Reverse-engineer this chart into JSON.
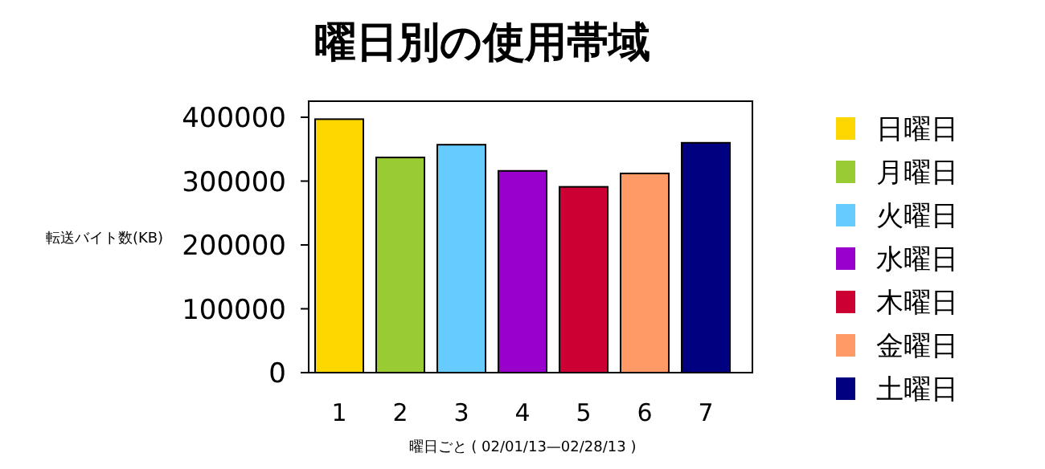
{
  "chart_data": {
    "type": "bar",
    "title": "曜日別の使用帯域",
    "xlabel": "曜日ごと ( 02/01/13—02/28/13 )",
    "ylabel": "転送バイト数(KB)",
    "categories": [
      "1",
      "2",
      "3",
      "4",
      "5",
      "6",
      "7"
    ],
    "series": [
      {
        "name": "日曜日",
        "color": "#ffd700",
        "values": [
          397000,
          null,
          null,
          null,
          null,
          null,
          null
        ]
      },
      {
        "name": "月曜日",
        "color": "#99cc33",
        "values": [
          null,
          337000,
          null,
          null,
          null,
          null,
          null
        ]
      },
      {
        "name": "火曜日",
        "color": "#66ccff",
        "values": [
          null,
          null,
          357000,
          null,
          null,
          null,
          null
        ]
      },
      {
        "name": "水曜日",
        "color": "#9900cc",
        "values": [
          null,
          null,
          null,
          316000,
          null,
          null,
          null
        ]
      },
      {
        "name": "木曜日",
        "color": "#cc0033",
        "values": [
          null,
          null,
          null,
          null,
          291000,
          null,
          null
        ]
      },
      {
        "name": "金曜日",
        "color": "#ff9966",
        "values": [
          null,
          null,
          null,
          null,
          null,
          312000,
          null
        ]
      },
      {
        "name": "土曜日",
        "color": "#000080",
        "values": [
          null,
          null,
          null,
          null,
          null,
          null,
          360000
        ]
      }
    ],
    "ylim": [
      0,
      400000
    ],
    "yticks": [
      0,
      100000,
      200000,
      300000,
      400000
    ],
    "grid": false,
    "legend": "right"
  }
}
